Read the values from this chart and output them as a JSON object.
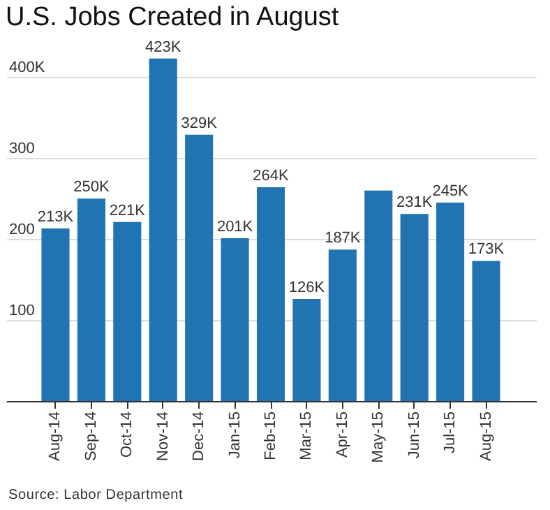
{
  "chart_data": {
    "type": "bar",
    "title": "U.S. Jobs Created in August",
    "categories": [
      "Aug-14",
      "Sep-14",
      "Oct-14",
      "Nov-14",
      "Dec-14",
      "Jan-15",
      "Feb-15",
      "Mar-15",
      "Apr-15",
      "May-15",
      "Jun-15",
      "Jul-15",
      "Aug-15"
    ],
    "values": [
      213,
      250,
      221,
      423,
      329,
      201,
      264,
      126,
      187,
      260,
      231,
      245,
      173
    ],
    "value_labels": [
      "213K",
      "250K",
      "221K",
      "423K",
      "329K",
      "201K",
      "264K",
      "126K",
      "187K",
      null,
      "231K",
      "245K",
      "173K"
    ],
    "color": "#1f74b1",
    "ylim": [
      0,
      440
    ],
    "yticks": [
      {
        "value": 100,
        "label": "100"
      },
      {
        "value": 200,
        "label": "200"
      },
      {
        "value": 300,
        "label": "300"
      },
      {
        "value": 400,
        "label": "400K"
      }
    ],
    "grid": "y",
    "annotations": [
      "Source: Labor Department"
    ]
  }
}
